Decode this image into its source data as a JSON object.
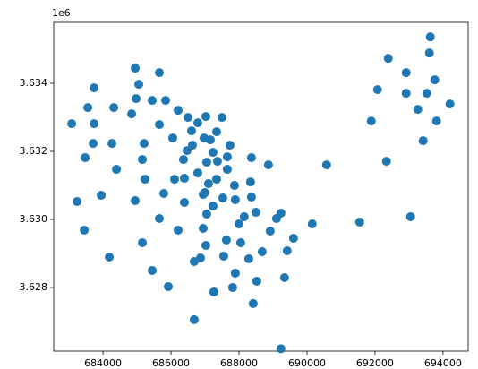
{
  "chart_data": {
    "type": "scatter",
    "y_offset_text": "1e6",
    "color": "#1f77b4",
    "xlim": [
      682550,
      694740
    ],
    "ylim": [
      3626130,
      3635790
    ],
    "xticks": [
      684000,
      686000,
      688000,
      690000,
      692000,
      694000
    ],
    "yticks": [
      {
        "value": 3628000,
        "label": "3.628"
      },
      {
        "value": 3630000,
        "label": "3.630"
      },
      {
        "value": 3632000,
        "label": "3.632"
      },
      {
        "value": 3634000,
        "label": "3.634"
      }
    ],
    "x": [
      683079,
      683237,
      683474,
      683448,
      683553,
      683737,
      683737,
      683711,
      683947,
      684184,
      684316,
      684263,
      684395,
      684842,
      684947,
      684973,
      685052,
      684947,
      685210,
      685157,
      685236,
      685157,
      685447,
      685447,
      685657,
      685657,
      685657,
      685788,
      685841,
      685920,
      686051,
      686104,
      686209,
      686209,
      686367,
      686393,
      686393,
      686499,
      686472,
      686604,
      686630,
      686683,
      686683,
      686788,
      686788,
      686867,
      686946,
      686946,
      686972,
      687025,
      686998,
      687025,
      687051,
      687051,
      687103,
      687156,
      687235,
      687261,
      687235,
      687340,
      687340,
      687366,
      687498,
      687524,
      687550,
      687656,
      687656,
      687629,
      687735,
      687813,
      687866,
      687892,
      687892,
      687998,
      688050,
      688155,
      688287,
      688339,
      688366,
      688366,
      688418,
      688497,
      688524,
      688681,
      688866,
      688918,
      689102,
      689234,
      689234,
      689339,
      689418,
      689602,
      690154,
      690575,
      691548,
      691890,
      692074,
      692337,
      692390,
      692916,
      692916,
      693047,
      693258,
      693415,
      693521,
      693600,
      693626,
      693757,
      693810,
      694204
    ],
    "y": [
      3632813,
      3630525,
      3631814,
      3629683,
      3633286,
      3633865,
      3632813,
      3632234,
      3630709,
      3628894,
      3633286,
      3632234,
      3631472,
      3633102,
      3634444,
      3633549,
      3633970,
      3630551,
      3632234,
      3631761,
      3631182,
      3629315,
      3633497,
      3628500,
      3634312,
      3632787,
      3630025,
      3630762,
      3633497,
      3628026,
      3632392,
      3631182,
      3633207,
      3629683,
      3631761,
      3631209,
      3630499,
      3632997,
      3632024,
      3632603,
      3632182,
      3627053,
      3628763,
      3631366,
      3632839,
      3628868,
      3630735,
      3629736,
      3632392,
      3633023,
      3630788,
      3629236,
      3631682,
      3630157,
      3631051,
      3632340,
      3630393,
      3627868,
      3631971,
      3632576,
      3631182,
      3631708,
      3632997,
      3630630,
      3628921,
      3631840,
      3631472,
      3629394,
      3632182,
      3628000,
      3630998,
      3630577,
      3628421,
      3629867,
      3629315,
      3630078,
      3628842,
      3631103,
      3630656,
      3631814,
      3627527,
      3630209,
      3628184,
      3629052,
      3631603,
      3629657,
      3630025,
      3630183,
      3626200,
      3628289,
      3629078,
      3629447,
      3629867,
      3631603,
      3629920,
      3632892,
      3633812,
      3631708,
      3634733,
      3634312,
      3633707,
      3630078,
      3633234,
      3632313,
      3633707,
      3634891,
      3635364,
      3634102,
      3632892,
      3633392
    ]
  }
}
